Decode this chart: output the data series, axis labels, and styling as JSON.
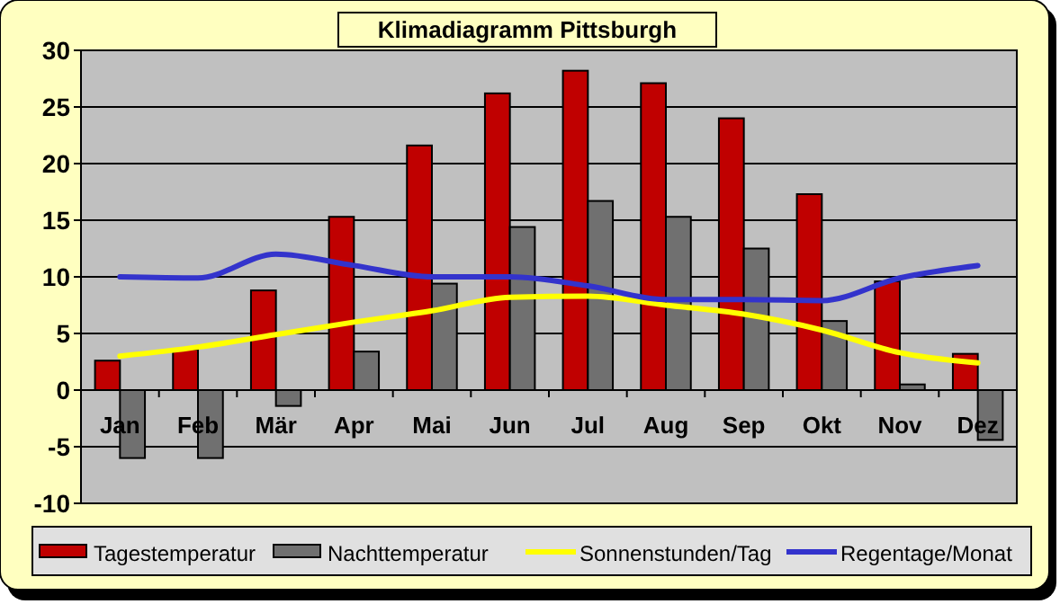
{
  "chart_data": {
    "type": "bar",
    "title": "Klimadiagramm Pittsburgh",
    "categories": [
      "Jan",
      "Feb",
      "Mär",
      "Apr",
      "Mai",
      "Jun",
      "Jul",
      "Aug",
      "Sep",
      "Okt",
      "Nov",
      "Dez"
    ],
    "series": [
      {
        "name": "Tagestemperatur",
        "color": "#c00000",
        "values": [
          2.6,
          3.6,
          8.8,
          15.3,
          21.6,
          26.2,
          28.2,
          27.1,
          24.0,
          17.3,
          9.6,
          3.2
        ]
      },
      {
        "name": "Nachttemperatur",
        "color": "#707070",
        "values": [
          -6.0,
          -6.0,
          -1.4,
          3.4,
          9.4,
          14.4,
          16.7,
          15.3,
          12.5,
          6.1,
          0.5,
          -4.4
        ]
      },
      {
        "name": "Sonnenstunden/Tag",
        "type": "line",
        "color": "#ffff00",
        "values": [
          3.0,
          3.8,
          4.9,
          6.0,
          7.0,
          8.2,
          8.3,
          7.5,
          6.7,
          5.3,
          3.3,
          2.4
        ]
      },
      {
        "name": "Regentage/Monat",
        "type": "line",
        "color": "#3333cc",
        "values": [
          10.0,
          9.9,
          12.0,
          11.0,
          10.0,
          10.0,
          9.2,
          8.0,
          8.0,
          7.9,
          9.9,
          11.0
        ]
      }
    ],
    "ylim": [
      -10,
      30
    ],
    "yticks": [
      -10,
      -5,
      0,
      5,
      10,
      15,
      20,
      25,
      30
    ],
    "grid": "y",
    "legend": "bottom",
    "marker": "none"
  }
}
